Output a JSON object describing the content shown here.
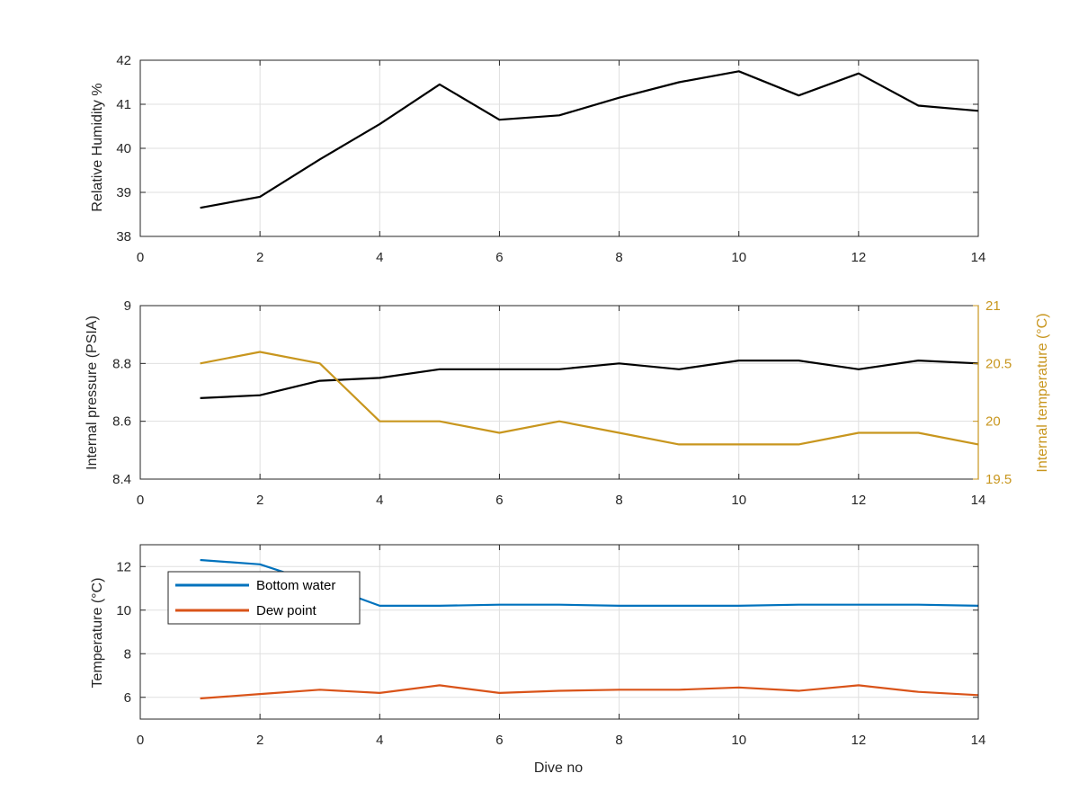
{
  "chart_data": [
    {
      "type": "line",
      "title": "",
      "xlabel": "",
      "ylabel": "Relative Humidity %",
      "xlim": [
        0,
        14
      ],
      "ylim": [
        38,
        42
      ],
      "xticks": [
        "0",
        "2",
        "4",
        "6",
        "8",
        "10",
        "12",
        "14"
      ],
      "yticks": [
        "38",
        "39",
        "40",
        "41",
        "42"
      ],
      "grid": true,
      "series": [
        {
          "color": "#000000",
          "x": [
            1,
            2,
            3,
            4,
            5,
            6,
            7,
            8,
            9,
            10,
            11,
            12,
            13,
            14
          ],
          "y": [
            38.65,
            38.9,
            39.75,
            40.55,
            41.45,
            40.65,
            40.75,
            41.15,
            41.5,
            41.75,
            41.2,
            41.7,
            40.97,
            40.85
          ]
        }
      ]
    },
    {
      "type": "line",
      "title": "",
      "xlabel": "",
      "ylabel": "Internal pressure (PSIA)",
      "y2label": "Internal temperature (°C)",
      "xlim": [
        0,
        14
      ],
      "ylim": [
        8.4,
        9
      ],
      "y2lim": [
        19.5,
        21
      ],
      "xticks": [
        "0",
        "2",
        "4",
        "6",
        "8",
        "10",
        "12",
        "14"
      ],
      "yticks": [
        "8.4",
        "8.6",
        "8.8",
        "9"
      ],
      "y2ticks": [
        "19.5",
        "20",
        "20.5",
        "21"
      ],
      "grid": true,
      "series": [
        {
          "axis": "left",
          "color": "#000000",
          "x": [
            1,
            2,
            3,
            4,
            5,
            6,
            7,
            8,
            9,
            10,
            11,
            12,
            13,
            14
          ],
          "y": [
            8.68,
            8.69,
            8.74,
            8.75,
            8.78,
            8.78,
            8.78,
            8.8,
            8.78,
            8.81,
            8.81,
            8.78,
            8.81,
            8.8
          ]
        },
        {
          "axis": "right",
          "color": "#C8961E",
          "x": [
            1,
            2,
            3,
            4,
            5,
            6,
            7,
            8,
            9,
            10,
            11,
            12,
            13,
            14
          ],
          "y": [
            20.5,
            20.6,
            20.5,
            20.0,
            20.0,
            19.9,
            20.0,
            19.9,
            19.8,
            19.8,
            19.8,
            19.9,
            19.9,
            19.8
          ]
        }
      ]
    },
    {
      "type": "line",
      "title": "",
      "xlabel": "Dive no",
      "ylabel": "Temperature (°C)",
      "xlim": [
        0,
        14
      ],
      "ylim": [
        5,
        13
      ],
      "xticks": [
        "0",
        "2",
        "4",
        "6",
        "8",
        "10",
        "12",
        "14"
      ],
      "yticks": [
        "6",
        "8",
        "10",
        "12"
      ],
      "grid": true,
      "legend": {
        "position": "top-left"
      },
      "series": [
        {
          "name": "Bottom water",
          "color": "#0072BD",
          "x": [
            1,
            2,
            3,
            4,
            5,
            6,
            7,
            8,
            9,
            10,
            11,
            12,
            13,
            14
          ],
          "y": [
            12.3,
            12.1,
            11.2,
            10.2,
            10.2,
            10.25,
            10.25,
            10.2,
            10.2,
            10.2,
            10.25,
            10.25,
            10.25,
            10.2
          ]
        },
        {
          "name": "Dew point",
          "color": "#D95319",
          "x": [
            1,
            2,
            3,
            4,
            5,
            6,
            7,
            8,
            9,
            10,
            11,
            12,
            13,
            14
          ],
          "y": [
            5.95,
            6.15,
            6.35,
            6.2,
            6.55,
            6.2,
            6.3,
            6.35,
            6.35,
            6.45,
            6.3,
            6.55,
            6.25,
            6.1
          ]
        }
      ]
    }
  ]
}
